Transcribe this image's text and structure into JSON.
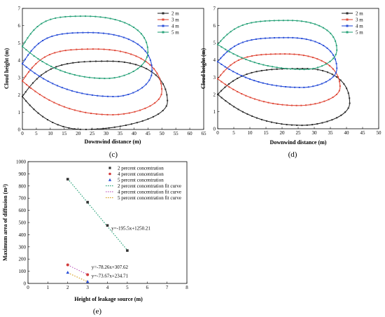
{
  "figure": {
    "panels": [
      "(c)",
      "(d)",
      "(e)"
    ]
  },
  "chart_data": [
    {
      "id": "c",
      "type": "line",
      "panel_label": "(c)",
      "xlabel": "Downwind distance (m)",
      "ylabel": "Cloud height (m)",
      "xlim": [
        0,
        65
      ],
      "ylim": [
        0,
        7
      ],
      "xticks": [
        "0",
        "5",
        "10",
        "15",
        "20",
        "25",
        "30",
        "35",
        "40",
        "45",
        "50",
        "55",
        "60",
        "65"
      ],
      "yticks": [
        "0",
        "1",
        "2",
        "3",
        "4",
        "5",
        "6",
        "7"
      ],
      "legend_position": "top-right",
      "series": [
        {
          "name": "2 m",
          "color": "#2b2b2b",
          "shape": "closed-contour",
          "left": [
            0,
            1.9
          ],
          "top": [
            31,
            3.95
          ],
          "right": [
            52,
            1.6
          ],
          "bottom": [
            22,
            0
          ]
        },
        {
          "name": "3 m",
          "color": "#e04a3a",
          "shape": "closed-contour",
          "left": [
            0,
            2.8
          ],
          "top": [
            26,
            4.65
          ],
          "right": [
            50,
            2.2
          ],
          "bottom": [
            32,
            0.85
          ]
        },
        {
          "name": "4 m",
          "color": "#2a4fd8",
          "shape": "closed-contour",
          "left": [
            0,
            3.8
          ],
          "top": [
            24,
            5.6
          ],
          "right": [
            46.5,
            3.4
          ],
          "bottom": [
            33,
            1.9
          ]
        },
        {
          "name": "5 m",
          "color": "#2aa37a",
          "shape": "closed-contour",
          "left": [
            0,
            4.8
          ],
          "top": [
            22,
            6.55
          ],
          "right": [
            45,
            4.5
          ],
          "bottom": [
            30,
            2.95
          ]
        }
      ]
    },
    {
      "id": "d",
      "type": "line",
      "panel_label": "(d)",
      "xlabel": "Downwind distance (m)",
      "ylabel": "Cloud height (m)",
      "xlim": [
        0,
        50
      ],
      "ylim": [
        0,
        7
      ],
      "xticks": [
        "0",
        "5",
        "10",
        "15",
        "20",
        "25",
        "30",
        "35",
        "40",
        "45",
        "50"
      ],
      "yticks": [
        "0",
        "1",
        "2",
        "3",
        "4",
        "5",
        "6",
        "7"
      ],
      "legend_position": "top-right",
      "series": [
        {
          "name": "2 m",
          "color": "#2b2b2b",
          "shape": "closed-contour",
          "left": [
            0,
            2.0
          ],
          "top": [
            27,
            3.5
          ],
          "right": [
            41,
            1.5
          ],
          "bottom": [
            26,
            0.2
          ]
        },
        {
          "name": "3 m",
          "color": "#e04a3a",
          "shape": "closed-contour",
          "left": [
            0,
            2.9
          ],
          "top": [
            21,
            4.35
          ],
          "right": [
            38,
            2.4
          ],
          "bottom": [
            25,
            1.35
          ]
        },
        {
          "name": "4 m",
          "color": "#2a4fd8",
          "shape": "closed-contour",
          "left": [
            0,
            3.9
          ],
          "top": [
            22,
            5.3
          ],
          "right": [
            37,
            3.5
          ],
          "bottom": [
            26,
            2.4
          ]
        },
        {
          "name": "5 m",
          "color": "#2aa37a",
          "shape": "closed-contour",
          "left": [
            0,
            4.9
          ],
          "top": [
            22,
            6.3
          ],
          "right": [
            37,
            4.6
          ],
          "bottom": [
            27,
            3.45
          ]
        }
      ]
    },
    {
      "id": "e",
      "type": "scatter",
      "panel_label": "(e)",
      "xlabel": "Height of leakage source (m)",
      "ylabel": "Maximum area of diffusion (m²)",
      "xlim": [
        0,
        8
      ],
      "ylim": [
        0,
        1000
      ],
      "xticks": [
        "0",
        "1",
        "2",
        "3",
        "4",
        "5",
        "6",
        "7",
        "8"
      ],
      "yticks": [
        "0",
        "100",
        "200",
        "300",
        "400",
        "500",
        "600",
        "700",
        "800",
        "900",
        "1000"
      ],
      "legend_position": "top-right",
      "legend": [
        "2 percent concentration",
        "4 percent concentration",
        "5 percent concentration",
        "2 percent concentration fit curve",
        "4 percent concentration fit curve",
        "5 percent concentration fit curve"
      ],
      "series": [
        {
          "name": "2 percent concentration",
          "color": "#333333",
          "marker": "square",
          "x": [
            2,
            3,
            4,
            5
          ],
          "y": [
            856,
            667,
            476,
            270
          ]
        },
        {
          "name": "4 percent concentration",
          "color": "#d23b3b",
          "marker": "circle",
          "x": [
            2,
            3
          ],
          "y": [
            152,
            72
          ]
        },
        {
          "name": "5 percent concentration",
          "color": "#2a4fd8",
          "marker": "triangle",
          "x": [
            2,
            3
          ],
          "y": [
            90,
            15
          ]
        }
      ],
      "fits": [
        {
          "name": "2 percent concentration fit curve",
          "color": "#2aa37a",
          "slope": -195.5,
          "intercept": 1250.21,
          "x_range": [
            2,
            5
          ],
          "equation": "y=-195.5x+1250.21"
        },
        {
          "name": "4 percent concentration fit curve",
          "color": "#c060c0",
          "slope": -78.26,
          "intercept": 307.62,
          "x_range": [
            2,
            3
          ],
          "equation": "y=-78.26x+307.62"
        },
        {
          "name": "5 percent concentration fit curve",
          "color": "#d8a020",
          "slope": -73.67,
          "intercept": 234.71,
          "x_range": [
            2,
            3
          ],
          "equation": "y=-73.67x+234.71"
        }
      ]
    }
  ]
}
